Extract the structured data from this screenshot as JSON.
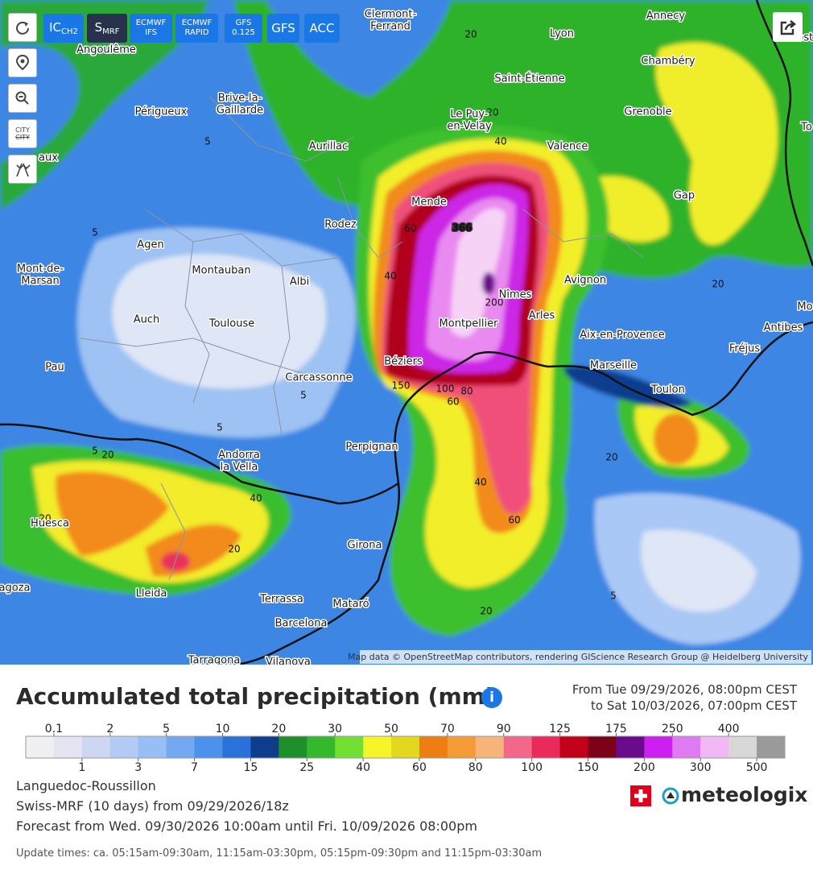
{
  "toolbar": {
    "buttons": [
      {
        "text": "IC",
        "sub": "CH2"
      },
      {
        "text": "S",
        "sub": "MRF"
      },
      {
        "top": "ECMWF",
        "bottom": "IFS"
      },
      {
        "top": "ECMWF",
        "bottom": "RAPID"
      },
      {
        "top": "GFS",
        "bottom": "0.125"
      },
      {
        "text": "GFS"
      },
      {
        "text": "ACC"
      }
    ],
    "city_icon": "CITY"
  },
  "map": {
    "cities": [
      "Angoulême",
      "Périgueux",
      [
        "Brive-la-",
        "Gaillarde"
      ],
      "Aurillac",
      [
        "Clermont-",
        "Ferrand"
      ],
      "Lyon",
      "Saint-Étienne",
      [
        "Le Puy-",
        "en-Velay"
      ],
      "Valence",
      "Annecy",
      "Chambéry",
      "Grenoble",
      "Gap",
      "Mende",
      "Rodez",
      "Agen",
      "Montauban",
      "Albi",
      [
        "Mont-de-",
        "Marsan"
      ],
      "Auch",
      "Toulouse",
      "Pau",
      "Carcassonne",
      "Béziers",
      "Montpellier",
      "Nîmes",
      "Arles",
      "Avignon",
      "Aix-en-Provence",
      "Marseille",
      "Toulon",
      "Fréjus",
      "Antibes",
      "Perpignan",
      [
        "Andorra",
        "la Vella"
      ],
      "Huesca",
      "Girona",
      "Lleida",
      "Terrassa",
      "Mataró",
      "Barcelona",
      "Tarragona",
      "Vilanova",
      "agoza",
      "aux",
      "Mo",
      "To",
      "Aost"
    ],
    "contour_labels": [
      366,
      60,
      40,
      200,
      100,
      60,
      80,
      150,
      40,
      60,
      40,
      20,
      20,
      20,
      20,
      20,
      5,
      5,
      5,
      5,
      5,
      5,
      20,
      20,
      40,
      20
    ],
    "attribution": "Map data © OpenStreetMap contributors, rendering GIScience Research Group @ Heidelberg University"
  },
  "header": {
    "title": "Accumulated total precipitation (mm)",
    "info_icon": "i",
    "period_from": "From Tue 09/29/2026, 08:00pm CEST",
    "period_to": "to Sat 10/03/2026, 07:00pm CEST"
  },
  "legend": {
    "labels": [
      0.1,
      1,
      2,
      3,
      5,
      7,
      10,
      15,
      20,
      25,
      30,
      40,
      50,
      60,
      70,
      80,
      90,
      100,
      125,
      150,
      175,
      200,
      250,
      300,
      400,
      500
    ],
    "colors": [
      "#f0f0f2",
      "#e4e4f2",
      "#cdd7f2",
      "#b3caf4",
      "#98bff5",
      "#72a9f0",
      "#4c91eb",
      "#2a72da",
      "#0f3d8e",
      "#1e8f2a",
      "#34b82c",
      "#72e032",
      "#f5f52a",
      "#e2d81e",
      "#ef7e12",
      "#f59b36",
      "#f7b47a",
      "#f2688a",
      "#ea2a5a",
      "#c20018",
      "#7c0018",
      "#6a0a8c",
      "#cc1ff0",
      "#e07af2",
      "#f2b8f6",
      "#d8d8d8",
      "#9a9a9a"
    ]
  },
  "info": {
    "region": "Languedoc-Roussillon",
    "model": "Swiss-MRF (10 days) from 09/29/2026/18z",
    "forecast": "Forecast from Wed. 09/30/2026 10:00am until Fri. 10/09/2026 08:00pm",
    "update_times": "Update times: ca. 05:15am-09:30am, 11:15am-03:30pm, 05:15pm-09:30pm and 11:15pm-03:30am",
    "logo": "meteologix"
  }
}
